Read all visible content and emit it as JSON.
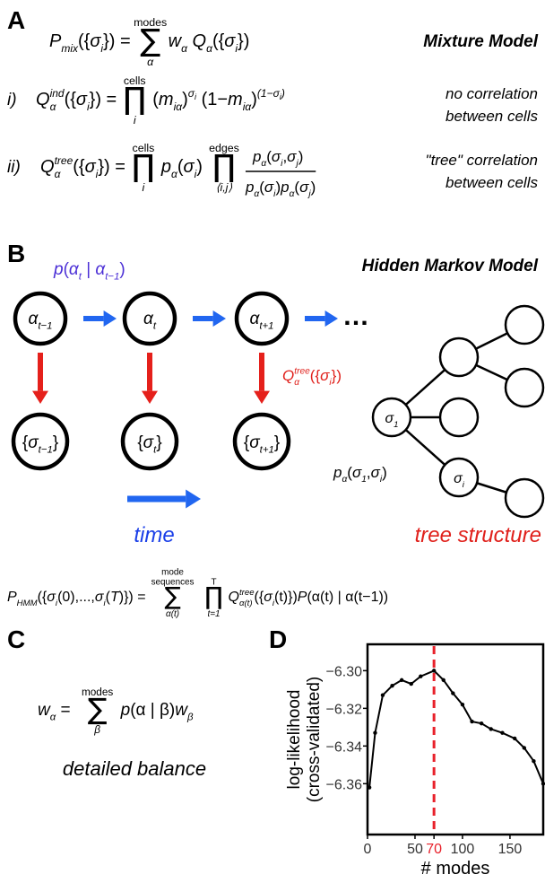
{
  "panels": {
    "A": {
      "label": "A",
      "title": "Mixture Model",
      "mix": {
        "lhs": [
          "P",
          "mix",
          "({",
          "σ",
          "i",
          "}) ="
        ],
        "sum": [
          "∑",
          "modes",
          "α"
        ],
        "rhs": [
          "w",
          "α",
          " Q",
          "α",
          "({",
          "σ",
          "i",
          "})"
        ]
      },
      "ind": {
        "number": "i)",
        "lhs": [
          "Q",
          "ind",
          "α",
          "({",
          "σ",
          "i",
          "}) ="
        ],
        "prod": [
          "∏",
          "cells",
          "i"
        ],
        "rhs": [
          "(",
          "m",
          "iα",
          ")",
          "σ",
          "i",
          " (1−",
          "m",
          "iα",
          ")",
          "(1−σ",
          "i",
          ")"
        ],
        "note": [
          "no correlation",
          "between cells"
        ]
      },
      "tree": {
        "number": "ii)",
        "lhs": [
          "Q",
          "tree",
          "α",
          "({",
          "σ",
          "i",
          "}) ="
        ],
        "prod": [
          "∏",
          "cells",
          "i"
        ],
        "rhs": [
          "p",
          "α",
          "(",
          "σ",
          "i",
          ")"
        ],
        "prod2": [
          "∏",
          "edges",
          "⟨i,j⟩"
        ],
        "numerator": [
          "p",
          "α",
          "(",
          "σ",
          "i",
          ",",
          "σ",
          "j",
          ")"
        ],
        "denominator": [
          "p",
          "α",
          "(",
          "σ",
          "i",
          ")",
          "p",
          "α",
          "(",
          "σ",
          "j",
          ")"
        ],
        "note": [
          "\"tree\" correlation",
          "between cells"
        ]
      }
    },
    "B": {
      "label": "B",
      "title": "Hidden Markov Model",
      "transition": [
        "p",
        "(",
        "α",
        "t",
        " | ",
        "α",
        "t−1",
        ")"
      ],
      "states": [
        [
          "α",
          "t−1"
        ],
        [
          "α",
          "t"
        ],
        [
          "α",
          "t+1"
        ]
      ],
      "observations": [
        [
          "{",
          "σ",
          "t−1",
          "}"
        ],
        [
          "{",
          "σ",
          "t",
          "}"
        ],
        [
          "{",
          "σ",
          "t+1",
          "}"
        ]
      ],
      "ellipsis": "…",
      "emission": [
        "Q",
        "tree",
        "α",
        "({",
        "σ",
        "i",
        "})"
      ],
      "root": [
        "σ",
        "1"
      ],
      "leaf": [
        "σ",
        "i"
      ],
      "edge": [
        "p",
        "α",
        "(",
        "σ",
        "1",
        ",",
        "σ",
        "i",
        ")"
      ],
      "time": "time",
      "tree_label": "tree structure",
      "hmm": {
        "lhs": [
          "P",
          "HMM",
          "({",
          "σ",
          "i",
          "(0),...,",
          "σ",
          "i",
          "(",
          "T",
          ")}) ="
        ],
        "sum": [
          "∑",
          "mode",
          "sequences",
          "α(t)"
        ],
        "prod": [
          "∏",
          "T",
          "t=1"
        ],
        "rhs": [
          "Q",
          "tree",
          "α(t)",
          "({",
          "σ",
          "i",
          "(t)})",
          "P",
          "(α(t) | α(t−1))"
        ]
      }
    },
    "C": {
      "label": "C",
      "lhs": [
        "w",
        "α",
        " ="
      ],
      "sum": [
        "∑",
        "modes",
        "β"
      ],
      "rhs": [
        "p",
        "(α | β)",
        "w",
        "β"
      ],
      "caption": "detailed balance"
    },
    "D": {
      "label": "D"
    }
  },
  "chart_data": {
    "type": "line",
    "xlabel": "# modes",
    "ylabel": [
      "log-likelihood",
      "(cross-validated)"
    ],
    "x": [
      2,
      8,
      16,
      26,
      36,
      46,
      56,
      70,
      80,
      90,
      100,
      110,
      120,
      130,
      142,
      155,
      165,
      175,
      185
    ],
    "values": [
      -6.362,
      -6.333,
      -6.313,
      -6.308,
      -6.305,
      -6.307,
      -6.303,
      -6.3,
      -6.305,
      -6.312,
      -6.318,
      -6.327,
      -6.328,
      -6.331,
      -6.333,
      -6.336,
      -6.341,
      -6.348,
      -6.36
    ],
    "color": "#000000",
    "xlim": [
      0,
      185
    ],
    "ylim": [
      -6.387,
      -6.286
    ],
    "xticks": [
      0,
      50,
      70,
      100,
      150
    ],
    "yticks": [
      {
        "value": -6.3,
        "label": "−6.30"
      },
      {
        "value": -6.32,
        "label": "−6.32"
      },
      {
        "value": -6.34,
        "label": "−6.34"
      },
      {
        "value": -6.36,
        "label": "−6.36"
      }
    ],
    "vline": {
      "value": 70,
      "color": "#e8202a"
    }
  }
}
